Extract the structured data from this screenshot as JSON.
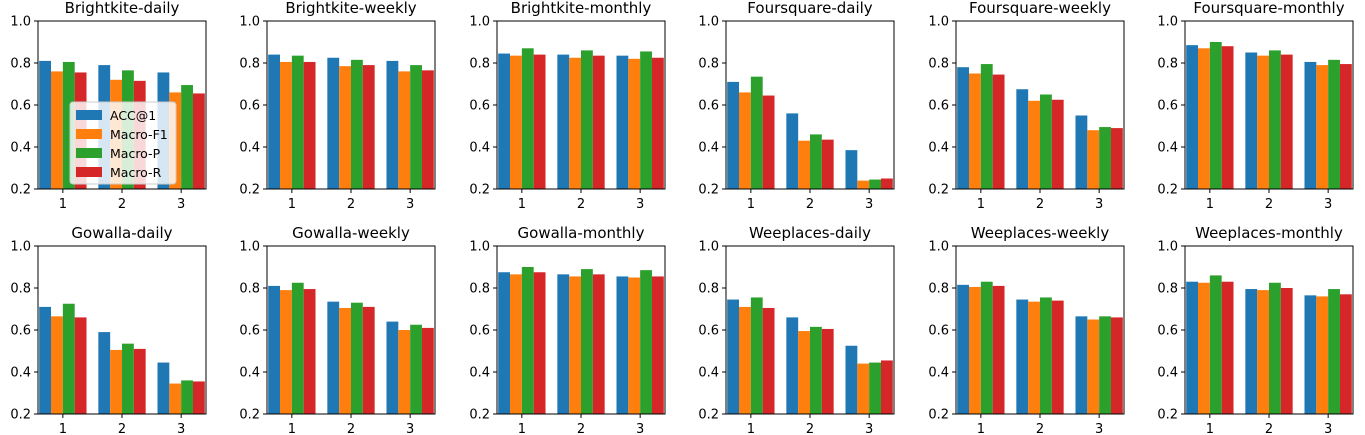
{
  "chart_data": {
    "type": "bar",
    "layout": "grid of small multiples, 2 rows x 6 columns",
    "categories": [
      "1",
      "2",
      "3"
    ],
    "ylim": [
      0.2,
      1.0
    ],
    "yticks": [
      "0.2",
      "0.4",
      "0.6",
      "0.8",
      "1.0"
    ],
    "grid": false,
    "legend_placement": "center-left of first panel",
    "series_names": [
      "ACC@1",
      "Macro-F1",
      "Macro-P",
      "Macro-R"
    ],
    "series_colors": [
      "#1f77b4",
      "#ff7f0e",
      "#2ca02c",
      "#d62728"
    ],
    "panels": [
      {
        "title": "Brightkite-daily",
        "series": [
          [
            0.81,
            0.79,
            0.755
          ],
          [
            0.76,
            0.72,
            0.66
          ],
          [
            0.805,
            0.765,
            0.695
          ],
          [
            0.755,
            0.715,
            0.655
          ]
        ]
      },
      {
        "title": "Brightkite-weekly",
        "series": [
          [
            0.84,
            0.825,
            0.81
          ],
          [
            0.805,
            0.785,
            0.76
          ],
          [
            0.835,
            0.815,
            0.79
          ],
          [
            0.805,
            0.79,
            0.765
          ]
        ]
      },
      {
        "title": "Brightkite-monthly",
        "series": [
          [
            0.845,
            0.84,
            0.835
          ],
          [
            0.835,
            0.825,
            0.82
          ],
          [
            0.87,
            0.86,
            0.855
          ],
          [
            0.84,
            0.835,
            0.825
          ]
        ]
      },
      {
        "title": "Foursquare-daily",
        "series": [
          [
            0.71,
            0.56,
            0.385
          ],
          [
            0.66,
            0.43,
            0.24
          ],
          [
            0.735,
            0.46,
            0.245
          ],
          [
            0.645,
            0.435,
            0.25
          ]
        ]
      },
      {
        "title": "Foursquare-weekly",
        "series": [
          [
            0.78,
            0.675,
            0.55
          ],
          [
            0.75,
            0.62,
            0.48
          ],
          [
            0.795,
            0.65,
            0.495
          ],
          [
            0.745,
            0.625,
            0.49
          ]
        ]
      },
      {
        "title": "Foursquare-monthly",
        "series": [
          [
            0.885,
            0.85,
            0.805
          ],
          [
            0.87,
            0.835,
            0.79
          ],
          [
            0.9,
            0.86,
            0.815
          ],
          [
            0.88,
            0.84,
            0.795
          ]
        ]
      },
      {
        "title": "Gowalla-daily",
        "series": [
          [
            0.71,
            0.59,
            0.445
          ],
          [
            0.665,
            0.505,
            0.345
          ],
          [
            0.725,
            0.535,
            0.36
          ],
          [
            0.66,
            0.51,
            0.355
          ]
        ]
      },
      {
        "title": "Gowalla-weekly",
        "series": [
          [
            0.81,
            0.735,
            0.64
          ],
          [
            0.79,
            0.705,
            0.6
          ],
          [
            0.825,
            0.73,
            0.625
          ],
          [
            0.795,
            0.71,
            0.61
          ]
        ]
      },
      {
        "title": "Gowalla-monthly",
        "series": [
          [
            0.875,
            0.865,
            0.855
          ],
          [
            0.865,
            0.855,
            0.85
          ],
          [
            0.9,
            0.89,
            0.885
          ],
          [
            0.875,
            0.865,
            0.855
          ]
        ]
      },
      {
        "title": "Weeplaces-daily",
        "series": [
          [
            0.745,
            0.66,
            0.525
          ],
          [
            0.71,
            0.595,
            0.44
          ],
          [
            0.755,
            0.615,
            0.445
          ],
          [
            0.705,
            0.605,
            0.455
          ]
        ]
      },
      {
        "title": "Weeplaces-weekly",
        "series": [
          [
            0.815,
            0.745,
            0.665
          ],
          [
            0.805,
            0.735,
            0.65
          ],
          [
            0.83,
            0.755,
            0.665
          ],
          [
            0.81,
            0.74,
            0.66
          ]
        ]
      },
      {
        "title": "Weeplaces-monthly",
        "series": [
          [
            0.83,
            0.795,
            0.765
          ],
          [
            0.825,
            0.79,
            0.76
          ],
          [
            0.86,
            0.825,
            0.795
          ],
          [
            0.83,
            0.8,
            0.77
          ]
        ]
      }
    ]
  }
}
